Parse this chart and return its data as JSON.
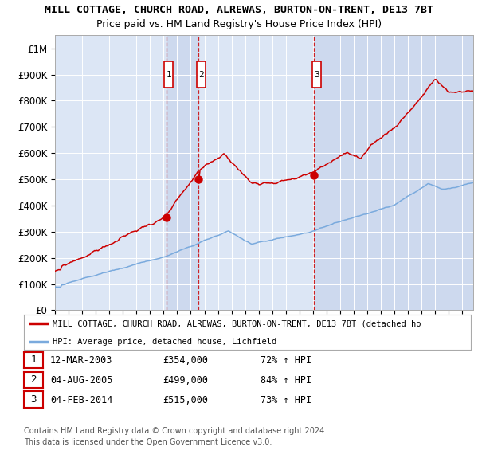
{
  "title1": "MILL COTTAGE, CHURCH ROAD, ALREWAS, BURTON-ON-TRENT, DE13 7BT",
  "title2": "Price paid vs. HM Land Registry's House Price Index (HPI)",
  "ylabel_ticks": [
    "£0",
    "£100K",
    "£200K",
    "£300K",
    "£400K",
    "£500K",
    "£600K",
    "£700K",
    "£800K",
    "£900K",
    "£1M"
  ],
  "ytick_values": [
    0,
    100000,
    200000,
    300000,
    400000,
    500000,
    600000,
    700000,
    800000,
    900000,
    1000000
  ],
  "ylim": [
    0,
    1050000
  ],
  "xlim_start": 1995.0,
  "xlim_end": 2025.8,
  "background_color": "#ffffff",
  "plot_bg_color": "#dce6f5",
  "grid_color": "#ffffff",
  "sale_dates": [
    2003.19,
    2005.58,
    2014.09
  ],
  "sale_prices": [
    354000,
    499000,
    515000
  ],
  "sale_labels": [
    "1",
    "2",
    "3"
  ],
  "legend_line1": "MILL COTTAGE, CHURCH ROAD, ALREWAS, BURTON-ON-TRENT, DE13 7BT (detached ho",
  "legend_line2": "HPI: Average price, detached house, Lichfield",
  "table_rows": [
    [
      "1",
      "12-MAR-2003",
      "£354,000",
      "72% ↑ HPI"
    ],
    [
      "2",
      "04-AUG-2005",
      "£499,000",
      "84% ↑ HPI"
    ],
    [
      "3",
      "04-FEB-2014",
      "£515,000",
      "73% ↑ HPI"
    ]
  ],
  "footer1": "Contains HM Land Registry data © Crown copyright and database right 2024.",
  "footer2": "This data is licensed under the Open Government Licence v3.0.",
  "red_color": "#cc0000",
  "blue_color": "#7aaadd",
  "shade_color": "#cdd9ee"
}
